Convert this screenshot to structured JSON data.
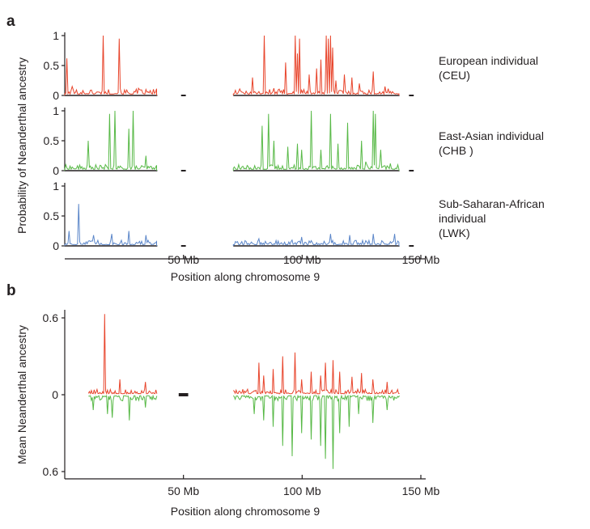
{
  "panel_labels": [
    "a",
    "b"
  ],
  "colors": {
    "european": "#e8452c",
    "east_asian": "#58b947",
    "african": "#5b86c9",
    "axis": "#231f20"
  },
  "chart_data": [
    {
      "type": "area",
      "panel": "a",
      "xlabel": "Position along chromosome 9",
      "ylabel": "Probability of Neanderthal ancestry",
      "xlim": [
        0,
        150
      ],
      "x_ticks": [
        50,
        100,
        150
      ],
      "x_tick_labels": [
        "50 Mb",
        "100 Mb",
        "150 Mb"
      ],
      "y_ticks": [
        0,
        0.5,
        1
      ],
      "y_tick_labels": [
        "0",
        "0.5",
        "1"
      ],
      "gap_marker_x": [
        49,
        51
      ],
      "series": [
        {
          "name": "European individual (CEU)",
          "label_lines": [
            "European individual",
            "(CEU)"
          ],
          "color": "#e8452c",
          "segments": [
            [
              0,
              39
            ],
            [
              71,
              141
            ]
          ],
          "baseline": 0.06,
          "noise": 0.09,
          "peaks": [
            [
              1,
              0.62
            ],
            [
              3,
              0.15
            ],
            [
              16,
              1.0
            ],
            [
              23,
              0.95
            ],
            [
              31,
              0.12
            ],
            [
              79,
              0.3
            ],
            [
              84,
              1.0
            ],
            [
              88,
              0.12
            ],
            [
              93,
              0.55
            ],
            [
              97,
              1.0
            ],
            [
              98,
              0.7
            ],
            [
              99,
              0.95
            ],
            [
              103,
              0.35
            ],
            [
              106,
              0.45
            ],
            [
              108,
              0.6
            ],
            [
              110,
              1.0
            ],
            [
              111,
              0.95
            ],
            [
              112,
              1.0
            ],
            [
              113,
              0.8
            ],
            [
              114,
              0.25
            ],
            [
              118,
              0.35
            ],
            [
              121,
              0.3
            ],
            [
              124,
              0.2
            ],
            [
              130,
              0.4
            ],
            [
              135,
              0.15
            ]
          ]
        },
        {
          "name": "East-Asian individual (CHB )",
          "label_lines": [
            "East-Asian individual",
            "(CHB )"
          ],
          "color": "#58b947",
          "segments": [
            [
              0,
              39
            ],
            [
              71,
              141
            ]
          ],
          "baseline": 0.06,
          "noise": 0.08,
          "peaks": [
            [
              10,
              0.5
            ],
            [
              19,
              0.95
            ],
            [
              21,
              1.0
            ],
            [
              27,
              0.7
            ],
            [
              29,
              1.0
            ],
            [
              34,
              0.25
            ],
            [
              83,
              0.75
            ],
            [
              86,
              0.95
            ],
            [
              88,
              0.5
            ],
            [
              94,
              0.4
            ],
            [
              98,
              0.45
            ],
            [
              100,
              0.35
            ],
            [
              104,
              1.0
            ],
            [
              108,
              0.35
            ],
            [
              112,
              0.95
            ],
            [
              115,
              0.45
            ],
            [
              119,
              0.8
            ],
            [
              125,
              0.5
            ],
            [
              127,
              0.15
            ],
            [
              130,
              1.0
            ],
            [
              131,
              0.95
            ],
            [
              133,
              0.35
            ],
            [
              137,
              0.12
            ]
          ]
        },
        {
          "name": "Sub-Saharan-African individual (LWK)",
          "label_lines": [
            "Sub-Saharan-African",
            "individual",
            "(LWK)"
          ],
          "color": "#5b86c9",
          "segments": [
            [
              0,
              39
            ],
            [
              71,
              141
            ]
          ],
          "baseline": 0.05,
          "noise": 0.08,
          "peaks": [
            [
              6,
              0.7
            ],
            [
              2,
              0.25
            ],
            [
              12,
              0.18
            ],
            [
              20,
              0.2
            ],
            [
              27,
              0.25
            ],
            [
              34,
              0.18
            ],
            [
              82,
              0.12
            ],
            [
              100,
              0.15
            ],
            [
              112,
              0.2
            ],
            [
              120,
              0.18
            ],
            [
              130,
              0.2
            ],
            [
              139,
              0.2
            ]
          ]
        }
      ]
    },
    {
      "type": "line",
      "panel": "b",
      "xlabel": "Position along chromosome 9",
      "ylabel": "Mean Neanderthal ancestry",
      "xlim": [
        0,
        150
      ],
      "ylim": [
        -0.6,
        0.6
      ],
      "x_ticks": [
        50,
        100,
        150
      ],
      "x_tick_labels": [
        "50 Mb",
        "100 Mb",
        "150 Mb"
      ],
      "y_ticks": [
        0.6,
        0,
        -0.6
      ],
      "y_tick_labels": [
        "0.6",
        "0",
        "0.6"
      ],
      "gap_marker_x": [
        48,
        52
      ],
      "series": [
        {
          "name": "European",
          "color": "#e8452c",
          "direction": "up",
          "segments": [
            [
              10,
              39
            ],
            [
              71,
              141
            ]
          ],
          "baseline": 0.02,
          "noise": 0.035,
          "peaks": [
            [
              17,
              0.63
            ],
            [
              23,
              0.12
            ],
            [
              34,
              0.1
            ],
            [
              82,
              0.25
            ],
            [
              84,
              0.15
            ],
            [
              88,
              0.2
            ],
            [
              92,
              0.3
            ],
            [
              97,
              0.33
            ],
            [
              100,
              0.12
            ],
            [
              104,
              0.18
            ],
            [
              108,
              0.15
            ],
            [
              110,
              0.25
            ],
            [
              113,
              0.27
            ],
            [
              116,
              0.18
            ],
            [
              121,
              0.14
            ],
            [
              125,
              0.17
            ],
            [
              130,
              0.12
            ],
            [
              136,
              0.1
            ]
          ]
        },
        {
          "name": "East-Asian",
          "color": "#58b947",
          "direction": "down",
          "segments": [
            [
              10,
              39
            ],
            [
              71,
              141
            ]
          ],
          "baseline": 0.02,
          "noise": 0.04,
          "peaks": [
            [
              12,
              0.12
            ],
            [
              18,
              0.15
            ],
            [
              20,
              0.18
            ],
            [
              27,
              0.2
            ],
            [
              34,
              0.1
            ],
            [
              80,
              0.15
            ],
            [
              84,
              0.2
            ],
            [
              88,
              0.25
            ],
            [
              92,
              0.4
            ],
            [
              96,
              0.48
            ],
            [
              100,
              0.3
            ],
            [
              104,
              0.35
            ],
            [
              108,
              0.4
            ],
            [
              110,
              0.5
            ],
            [
              113,
              0.58
            ],
            [
              116,
              0.3
            ],
            [
              120,
              0.25
            ],
            [
              124,
              0.15
            ],
            [
              130,
              0.22
            ],
            [
              136,
              0.12
            ]
          ]
        }
      ]
    }
  ]
}
